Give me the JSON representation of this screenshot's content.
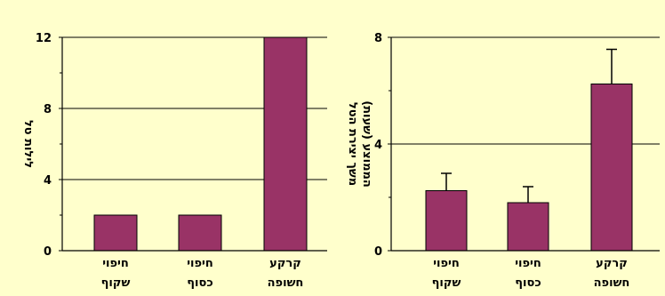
{
  "colors": {
    "background": "#ffffcc",
    "bar_fill": "#993366",
    "bar_stroke": "#000000",
    "axis": "#000000"
  },
  "chart_data": [
    {
      "type": "bar",
      "categories": [
        [
          "חיפוי",
          "שקוף"
        ],
        [
          "חיפוי",
          "כסוף"
        ],
        [
          "קרקע",
          "חשופה"
        ]
      ],
      "values": [
        2,
        2,
        12
      ],
      "ylabel": "לילות טל",
      "ylim": [
        0,
        12
      ],
      "yticks": [
        0,
        4,
        8,
        12
      ],
      "grid": true
    },
    {
      "type": "bar",
      "categories": [
        [
          "חיפוי",
          "שקוף"
        ],
        [
          "חיפוי",
          "כסוף"
        ],
        [
          "קרקע",
          "חשופה"
        ]
      ],
      "values": [
        2.25,
        1.8,
        6.25
      ],
      "error_upper": [
        0.65,
        0.6,
        1.3
      ],
      "ylabel": [
        "משך יצירת הטל",
        "הממוצע (שעות)"
      ],
      "ylim": [
        0,
        8
      ],
      "yticks": [
        0,
        4,
        8
      ],
      "grid": true
    }
  ]
}
